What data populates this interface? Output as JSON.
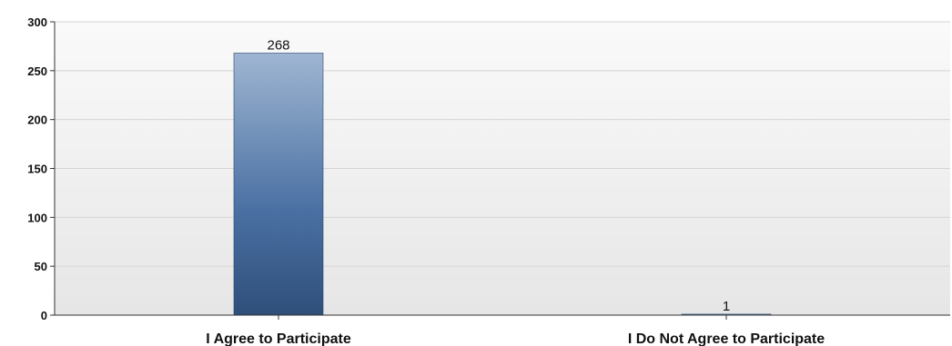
{
  "chart_data": {
    "type": "bar",
    "categories": [
      "I Agree to Participate",
      "I Do Not Agree to Participate"
    ],
    "values": [
      268,
      1
    ],
    "data_labels": [
      "268",
      "1"
    ],
    "ylim": [
      0,
      300
    ],
    "yticks": [
      0,
      50,
      100,
      150,
      200,
      250,
      300
    ],
    "ytick_labels": [
      "0",
      "50",
      "100",
      "150",
      "200",
      "250",
      "300"
    ],
    "grid": true,
    "legend": "none",
    "colors": {
      "bar_top": "#9fb6d2",
      "bar_mid": "#4a70a3",
      "bar_bottom": "#2f4f7a",
      "plot_bg_top": "#fafafa",
      "plot_bg_bottom": "#e6e6e6",
      "grid": "#d4d4d4",
      "axis": "#333333"
    }
  }
}
